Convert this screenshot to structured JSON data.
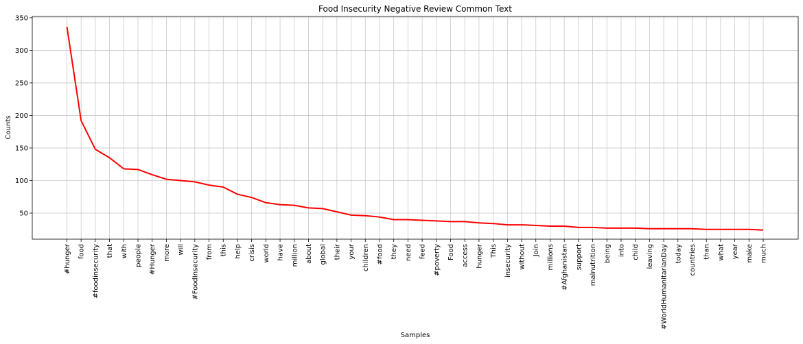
{
  "chart_data": {
    "type": "line",
    "title": "Food Insecurity Negative Review Common Text",
    "xlabel": "Samples",
    "ylabel": "Counts",
    "ylim": [
      10,
      352
    ],
    "yticks": [
      50,
      100,
      150,
      200,
      250,
      300,
      350
    ],
    "grid": true,
    "line_color": "#ff0000",
    "categories": [
      "#hunger",
      "food",
      "#foodinsecurity",
      "that",
      "with",
      "people",
      "#Hunger",
      "more",
      "will",
      "#FoodInsecurity",
      "from",
      "this",
      "help",
      "crisis",
      "world",
      "have",
      "million",
      "about",
      "global",
      "their",
      "your",
      "children",
      "#food",
      "they",
      "need",
      "feed",
      "#poverty",
      "Food",
      "access",
      "hunger",
      "This",
      "insecurity",
      "without",
      "Join",
      "millions",
      "#Afghanistan",
      "support",
      "malnutrition",
      "being",
      "into",
      "child",
      "leaving",
      "#WorldHumanitarianDay",
      "today",
      "countries",
      "than",
      "what",
      "year",
      "make",
      "much"
    ],
    "values": [
      336,
      192,
      148,
      135,
      118,
      117,
      109,
      102,
      100,
      98,
      93,
      90,
      79,
      74,
      66,
      63,
      62,
      58,
      57,
      52,
      47,
      46,
      44,
      40,
      40,
      39,
      38,
      37,
      37,
      35,
      34,
      32,
      32,
      31,
      30,
      30,
      28,
      28,
      27,
      27,
      27,
      26,
      26,
      26,
      26,
      25,
      25,
      25,
      25,
      24
    ]
  }
}
